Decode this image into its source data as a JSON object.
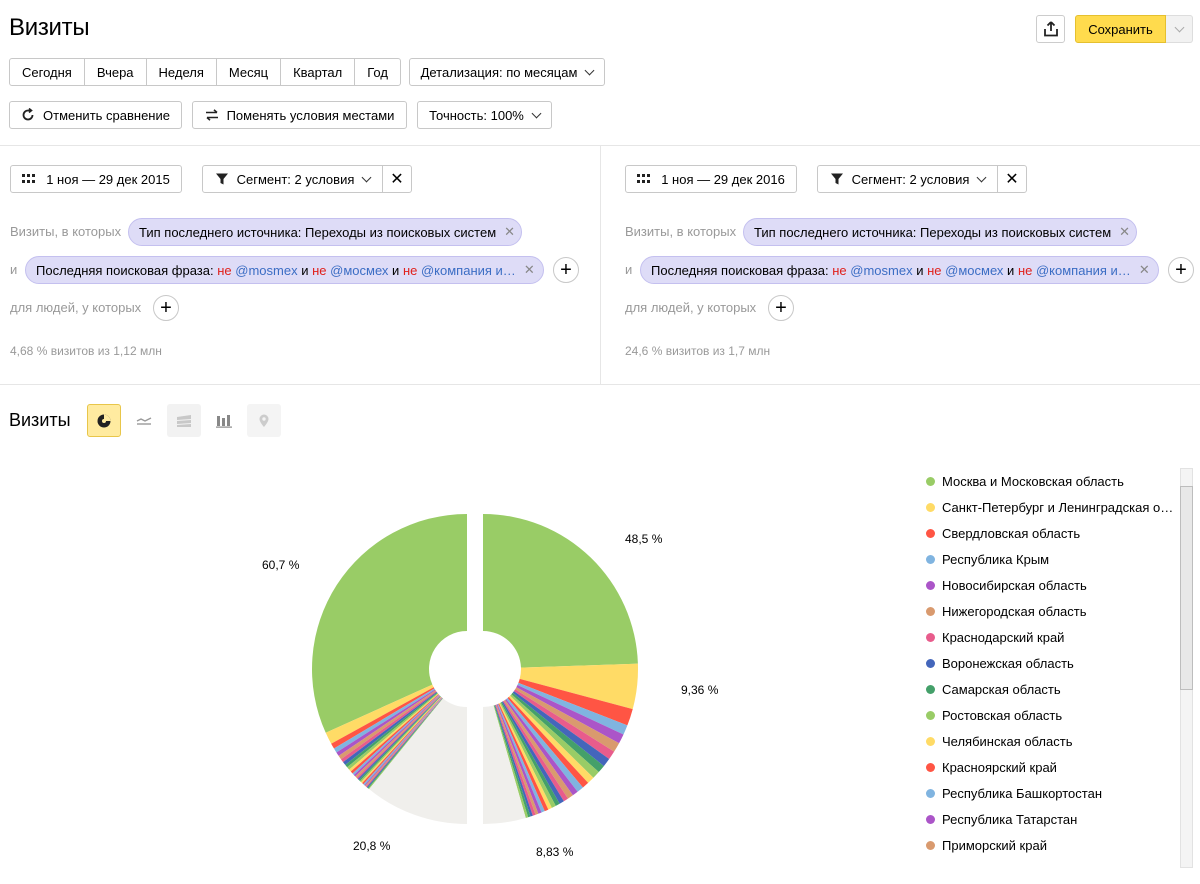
{
  "header": {
    "title": "Визиты",
    "save_label": "Сохранить"
  },
  "periods": [
    "Сегодня",
    "Вчера",
    "Неделя",
    "Месяц",
    "Квартал",
    "Год"
  ],
  "detail_label": "Детализация: по месяцам",
  "toolbar2": {
    "cancel_compare": "Отменить сравнение",
    "swap_conditions": "Поменять условия местами",
    "accuracy": "Точность: 100%"
  },
  "left": {
    "date_range": "1 ноя — 29 дек 2015",
    "segment": "Сегмент: 2 условия",
    "visits_where": "Визиты, в которых",
    "chip1": "Тип последнего источника: Переходы из поисковых систем",
    "and": "и",
    "chip2_prefix": "Последняя поисковая фраза: ",
    "chip2_tail": "@компания и…",
    "people_where": "для людей, у которых",
    "summary": "4,68 % визитов из 1,12 млн"
  },
  "right": {
    "date_range": "1 ноя — 29 дек 2016",
    "segment": "Сегмент: 2 условия",
    "visits_where": "Визиты, в которых",
    "chip1": "Тип последнего источника: Переходы из поисковых систем",
    "and": "и",
    "chip2_prefix": "Последняя поисковая фраза: ",
    "chip2_tail": "@компания и…",
    "people_where": "для людей, у которых",
    "summary": "24,6 % визитов из 1,7 млн"
  },
  "chip2_tokens": {
    "neg": "не",
    "mid": "и",
    "tag1": "@mosmex",
    "tag2": "@мосмех"
  },
  "chart_section": {
    "title": "Визиты",
    "chart_types": [
      "pie-chart-icon",
      "line-chart-icon",
      "area-chart-icon",
      "bar-chart-icon",
      "map-icon"
    ]
  },
  "chart_data": {
    "type": "pie",
    "left_half_labels": [
      "60,7 %",
      "20,8 %"
    ],
    "right_half_labels": [
      "48,5 %",
      "9,36 %",
      "8,83 %"
    ],
    "left_half": [
      60.7,
      2.4,
      1.1,
      0.9,
      0.8,
      0.8,
      0.7,
      0.7,
      0.6,
      0.6,
      0.5,
      0.5,
      0.4,
      0.4,
      0.4,
      0.3,
      0.3,
      0.3,
      0.3,
      0.3,
      0.3,
      0.3,
      0.2,
      0.2,
      0.2,
      0.2,
      0.2,
      0.2,
      20.8
    ],
    "right_half": [
      48.5,
      9.36,
      3.5,
      2.0,
      2.0,
      2.0,
      1.8,
      1.8,
      1.6,
      1.6,
      1.5,
      1.4,
      1.4,
      1.2,
      1.2,
      1.0,
      1.0,
      0.9,
      0.9,
      0.8,
      0.8,
      0.7,
      0.7,
      0.6,
      0.6,
      0.5,
      0.5,
      0.5,
      8.83
    ],
    "colors": [
      "#99cc66",
      "#ffdb66",
      "#ff5544",
      "#80b4e0",
      "#ab55c8",
      "#d99a6e",
      "#e85c8c",
      "#4466bb",
      "#44a06a",
      "#99cc66",
      "#ffdb66",
      "#ff5544",
      "#80b4e0",
      "#ab55c8",
      "#d99a6e",
      "#e85c8c",
      "#4466bb",
      "#44a06a",
      "#99cc66",
      "#ffdb66",
      "#ff5544",
      "#80b4e0",
      "#ab55c8",
      "#d99a6e",
      "#e85c8c",
      "#4466bb",
      "#44a06a",
      "#99cc66"
    ],
    "other_color": "#f0efec"
  },
  "legend": [
    {
      "label": "Москва и Московская область",
      "color": "#99cc66"
    },
    {
      "label": "Санкт-Петербург и Ленинградская об…",
      "color": "#ffdb66"
    },
    {
      "label": "Свердловская область",
      "color": "#ff5544"
    },
    {
      "label": "Республика Крым",
      "color": "#80b4e0"
    },
    {
      "label": "Новосибирская область",
      "color": "#ab55c8"
    },
    {
      "label": "Нижегородская область",
      "color": "#d99a6e"
    },
    {
      "label": "Краснодарский край",
      "color": "#e85c8c"
    },
    {
      "label": "Воронежская область",
      "color": "#4466bb"
    },
    {
      "label": "Самарская область",
      "color": "#44a06a"
    },
    {
      "label": "Ростовская область",
      "color": "#99cc66"
    },
    {
      "label": "Челябинская область",
      "color": "#ffdb66"
    },
    {
      "label": "Красноярский край",
      "color": "#ff5544"
    },
    {
      "label": "Республика Башкортостан",
      "color": "#80b4e0"
    },
    {
      "label": "Республика Татарстан",
      "color": "#ab55c8"
    },
    {
      "label": "Приморский край",
      "color": "#d99a6e"
    }
  ]
}
